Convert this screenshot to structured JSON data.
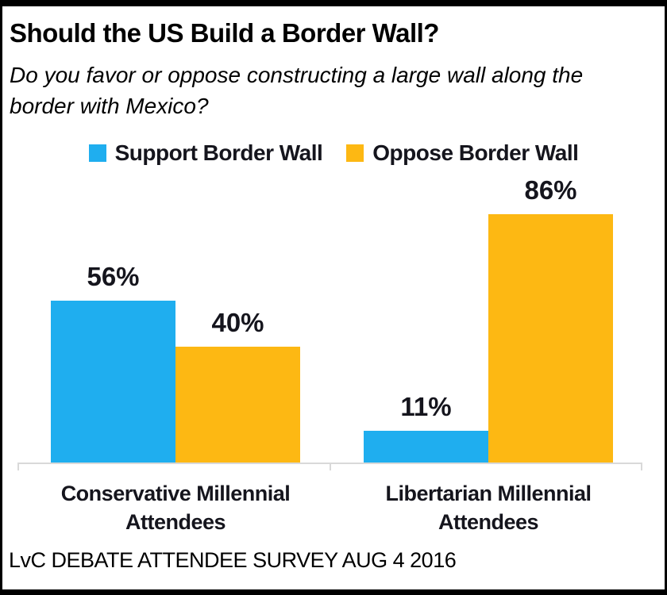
{
  "header": {
    "title": "Should the US Build a Border Wall?",
    "subtitle_line1": "Do you favor or oppose constructing a large wall along the",
    "subtitle_line2": "border with Mexico?"
  },
  "legend": [
    {
      "label": "Support Border Wall",
      "color": "#1FAEEF"
    },
    {
      "label": "Oppose Border Wall",
      "color": "#FDB813"
    }
  ],
  "chart_data": {
    "type": "bar",
    "categories": [
      "Conservative Millennial Attendees",
      "Libertarian Millennial Attendees"
    ],
    "x_labels": [
      {
        "line1": "Conservative Millennial",
        "line2": "Attendees"
      },
      {
        "line1": "Libertarian Millennial",
        "line2": "Attendees"
      }
    ],
    "series": [
      {
        "name": "Support Border Wall",
        "color": "#1FAEEF",
        "values": [
          56,
          11
        ],
        "labels": [
          "56%",
          "11%"
        ]
      },
      {
        "name": "Oppose Border Wall",
        "color": "#FDB813",
        "values": [
          40,
          86
        ],
        "labels": [
          "40%",
          "86%"
        ]
      }
    ],
    "title": "Should the US Build a Border Wall?",
    "xlabel": "",
    "ylabel": "",
    "ylim": [
      0,
      100
    ],
    "value_suffix": "%",
    "grid": false,
    "legend_position": "top"
  },
  "footer": {
    "source": "LvC DEBATE ATTENDEE SURVEY AUG 4 2016"
  },
  "colors": {
    "support_blue": "#1FAEEF",
    "oppose_yellow": "#FDB813",
    "axis_gray": "#D9D9D9",
    "label_dark": "#15151D"
  }
}
